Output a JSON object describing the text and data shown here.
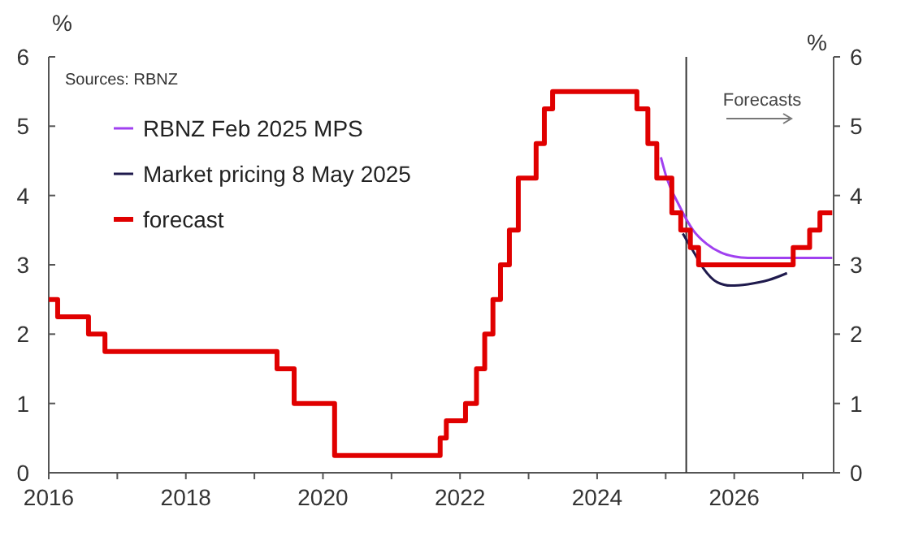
{
  "chart_data": {
    "type": "line",
    "ylabel": "%",
    "y2label": "%",
    "annotations": [
      "Sources: RBNZ",
      "Forecasts"
    ],
    "xlim": [
      2016,
      2027.45
    ],
    "xticks": [
      2016,
      {
        "value": 2017,
        "label": null
      },
      2018,
      {
        "value": 2019,
        "label": null
      },
      2020,
      {
        "value": 2021,
        "label": null
      },
      2022,
      {
        "value": 2023,
        "label": null
      },
      2024,
      {
        "value": 2025,
        "label": null
      },
      2026,
      {
        "value": 2027,
        "label": null
      }
    ],
    "ylim": [
      0,
      6
    ],
    "yticks": [
      0,
      1,
      2,
      3,
      4,
      5,
      6
    ],
    "y2lim": [
      0,
      6
    ],
    "y2ticks": [
      0,
      1,
      2,
      3,
      4,
      5,
      6
    ],
    "grid": false,
    "legend": "top left",
    "ref_lines": [
      {
        "axis": "x",
        "value": 2025.3,
        "color": "#333333"
      }
    ],
    "series": [
      {
        "name": "RBNZ Feb 2025 MPS",
        "color": "#a040f0",
        "x": [
          2024.93,
          2025.0,
          2025.2,
          2025.4,
          2025.6,
          2025.8,
          2026.0,
          2026.2,
          2027.43
        ],
        "values": [
          4.55,
          4.3,
          3.85,
          3.5,
          3.3,
          3.18,
          3.12,
          3.1,
          3.1
        ]
      },
      {
        "name": "Market pricing 8 May 2025",
        "color": "#1f1a4d",
        "x": [
          2025.25,
          2025.4,
          2025.55,
          2025.75,
          2025.95,
          2026.2,
          2026.5,
          2026.77
        ],
        "values": [
          3.45,
          3.2,
          2.95,
          2.75,
          2.7,
          2.72,
          2.78,
          2.88
        ]
      },
      {
        "name": "forecast",
        "type": "step",
        "color": "#e00000",
        "x": [
          2016,
          2016.13,
          2016.58,
          2016.82,
          2019.33,
          2019.58,
          2020.17,
          2021.71,
          2021.8,
          2022.08,
          2022.24,
          2022.36,
          2022.48,
          2022.59,
          2022.72,
          2022.85,
          2023.11,
          2023.23,
          2023.35,
          2024.58,
          2024.74,
          2024.87,
          2025.09,
          2025.22,
          2025.36,
          2025.48,
          2026.86,
          2027.1,
          2027.25,
          2027.43
        ],
        "values": [
          2.5,
          2.25,
          2,
          1.75,
          1.5,
          1,
          0.25,
          0.5,
          0.75,
          1,
          1.5,
          2,
          2.5,
          3,
          3.5,
          4.25,
          4.75,
          5.25,
          5.5,
          5.25,
          4.75,
          4.25,
          3.75,
          3.5,
          3.25,
          3,
          3.25,
          3.5,
          3.75,
          3.75
        ]
      }
    ]
  }
}
